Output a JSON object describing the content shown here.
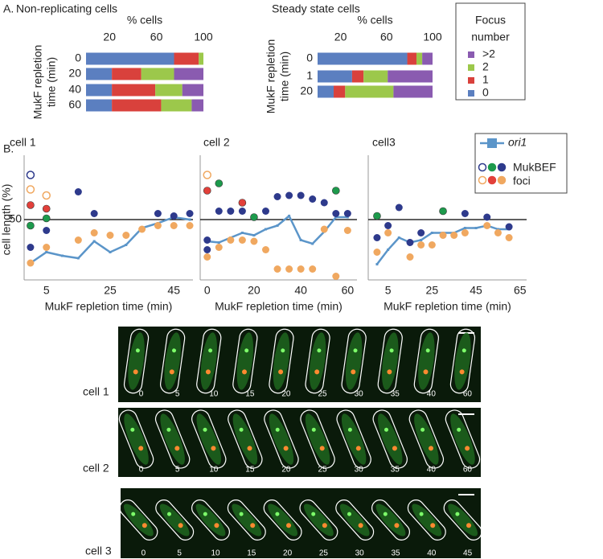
{
  "panel_labels": [
    "A.",
    "B."
  ],
  "focus_legend": {
    "title": [
      "Focus",
      "number"
    ]
  },
  "foci_legend": [
    "MukBEF",
    "foci"
  ],
  "chart_data": [
    {
      "type": "stacked-barh",
      "title": "Non-replicating cells",
      "xlabel": "% cells",
      "ylabel": [
        "MukF repletion",
        "time (min)"
      ],
      "categories": [
        "0",
        "20",
        "40",
        "60"
      ],
      "xlim": [
        0,
        100
      ],
      "xticks": [
        20,
        60,
        100
      ],
      "series": [
        {
          "name": "0",
          "color": "#5b7fc0",
          "values": [
            75,
            22,
            22,
            22
          ]
        },
        {
          "name": "1",
          "color": "#d9413c",
          "values": [
            21,
            25,
            37,
            42
          ]
        },
        {
          "name": "2",
          "color": "#9cc84b",
          "values": [
            4,
            28,
            23,
            26
          ]
        },
        {
          "name": ">2",
          "color": "#8a5bb0",
          "values": [
            0,
            25,
            18,
            10
          ]
        }
      ]
    },
    {
      "type": "stacked-barh",
      "title": "Steady state cells",
      "xlabel": "% cells",
      "ylabel": [
        "MukF repletion",
        "time (min)"
      ],
      "categories": [
        "0",
        "1",
        "20"
      ],
      "xlim": [
        0,
        100
      ],
      "xticks": [
        20,
        60,
        100
      ],
      "series": [
        {
          "color": "#5b7fc0",
          "values": [
            78,
            30,
            14
          ]
        },
        {
          "color": "#d9413c",
          "values": [
            8,
            10,
            10
          ]
        },
        {
          "color": "#9cc84b",
          "values": [
            5,
            21,
            42
          ]
        },
        {
          "color": "#8a5bb0",
          "values": [
            9,
            39,
            34
          ]
        }
      ]
    },
    {
      "type": "line-scatter",
      "title": "cell 1",
      "xlabel": "MukF repletion time (min)",
      "ylabel": "cell length (%)",
      "xlim": [
        -2,
        51
      ],
      "xticks": [
        5,
        25,
        45
      ],
      "ylim": [
        0,
        100
      ],
      "yticks": [
        50
      ],
      "hline": 50,
      "series": [
        {
          "name": "ori1",
          "kind": "line",
          "color": "#5b95c9",
          "x": [
            0,
            5,
            10,
            15,
            20,
            25,
            30,
            35,
            40,
            45,
            50
          ],
          "values": [
            14,
            23,
            20,
            18,
            32,
            23,
            29,
            43,
            47,
            52,
            50
          ]
        },
        {
          "kind": "open",
          "color": "#2e3a8c",
          "x": [
            0
          ],
          "values": [
            87
          ]
        },
        {
          "kind": "open",
          "color": "#f0a860",
          "x": [
            0,
            5
          ],
          "values": [
            75,
            70
          ]
        },
        {
          "kind": "dot",
          "color": "#e2403a",
          "x": [
            0,
            5
          ],
          "values": [
            62,
            59
          ]
        },
        {
          "kind": "dot",
          "color": "#1d9a4c",
          "x": [
            0,
            5
          ],
          "values": [
            45,
            51
          ]
        },
        {
          "kind": "dot",
          "color": "#2e3a8c",
          "x": [
            0,
            5,
            15,
            20,
            40,
            45,
            50
          ],
          "values": [
            27,
            41,
            73,
            55,
            55,
            53,
            55
          ]
        },
        {
          "kind": "dot",
          "color": "#f0a860",
          "x": [
            0,
            5,
            15,
            20,
            25,
            30,
            35,
            40,
            45,
            50
          ],
          "values": [
            14,
            27,
            33,
            39,
            37,
            37,
            42,
            45,
            45,
            45
          ]
        }
      ]
    },
    {
      "type": "line-scatter",
      "title": "cell 2",
      "xlabel": "MukF repletion time (min)",
      "xlim": [
        -3,
        64
      ],
      "xticks": [
        0,
        20,
        40,
        60
      ],
      "ylim": [
        0,
        100
      ],
      "hline": 50,
      "series": [
        {
          "kind": "line",
          "color": "#5b95c9",
          "x": [
            0,
            5,
            10,
            15,
            20,
            25,
            30,
            35,
            40,
            45,
            50,
            55,
            60
          ],
          "values": [
            32,
            31,
            35,
            39,
            37,
            42,
            45,
            53,
            33,
            30,
            40,
            52,
            52
          ]
        },
        {
          "kind": "open",
          "color": "#f0a860",
          "x": [
            0
          ],
          "values": [
            87
          ]
        },
        {
          "kind": "dot",
          "color": "#e2403a",
          "x": [
            0,
            15
          ],
          "values": [
            74,
            64
          ]
        },
        {
          "kind": "dot",
          "color": "#1d9a4c",
          "x": [
            5,
            20,
            55
          ],
          "values": [
            80,
            52,
            74
          ]
        },
        {
          "kind": "dot",
          "color": "#2e3a8c",
          "x": [
            0,
            0,
            5,
            10,
            15,
            25,
            30,
            35,
            40,
            45,
            50,
            55,
            60
          ],
          "values": [
            25,
            33,
            57,
            57,
            57,
            57,
            69,
            70,
            70,
            67,
            64,
            55,
            55
          ]
        },
        {
          "kind": "dot",
          "color": "#f0a860",
          "x": [
            0,
            5,
            10,
            15,
            20,
            25,
            30,
            35,
            40,
            45,
            50,
            55,
            60
          ],
          "values": [
            19,
            27,
            33,
            33,
            32,
            25,
            9,
            9,
            9,
            9,
            42,
            3,
            41
          ]
        }
      ]
    },
    {
      "type": "line-scatter",
      "title": "cell3",
      "xlabel": "MukF repletion time (min)",
      "xlim": [
        -4,
        68
      ],
      "xticks": [
        5,
        25,
        45,
        65
      ],
      "ylim": [
        0,
        100
      ],
      "hline": 50,
      "series": [
        {
          "kind": "line",
          "color": "#5b95c9",
          "x": [
            0,
            5,
            10,
            15,
            20,
            25,
            30,
            35,
            40,
            45,
            50,
            55,
            60
          ],
          "values": [
            13,
            25,
            35,
            31,
            33,
            39,
            39,
            39,
            43,
            43,
            45,
            42,
            42
          ]
        },
        {
          "kind": "dot",
          "color": "#1d9a4c",
          "x": [
            0,
            30
          ],
          "values": [
            53,
            57
          ]
        },
        {
          "kind": "dot",
          "color": "#2e3a8c",
          "x": [
            0,
            5,
            10,
            15,
            20,
            40,
            50,
            60
          ],
          "values": [
            35,
            45,
            60,
            31,
            39,
            55,
            52,
            44
          ]
        },
        {
          "kind": "dot",
          "color": "#f0a860",
          "x": [
            0,
            5,
            15,
            20,
            25,
            30,
            35,
            40,
            50,
            55,
            60
          ],
          "values": [
            23,
            39,
            19,
            29,
            29,
            37,
            37,
            39,
            45,
            39,
            35
          ]
        }
      ]
    }
  ],
  "micrographs": [
    {
      "label": "cell 1",
      "times": [
        0,
        5,
        10,
        15,
        20,
        25,
        30,
        35,
        40,
        60
      ]
    },
    {
      "label": "cell 2",
      "times": [
        0,
        5,
        10,
        15,
        20,
        25,
        30,
        35,
        40,
        60
      ]
    },
    {
      "label": "cell 3",
      "times": [
        0,
        5,
        10,
        15,
        20,
        25,
        30,
        35,
        40,
        45
      ]
    }
  ]
}
